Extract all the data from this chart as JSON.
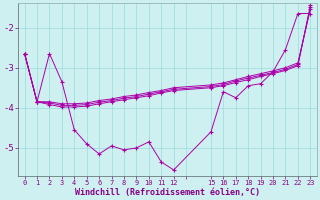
{
  "xlabel": "Windchill (Refroidissement éolien,°C)",
  "background_color": "#cff0f0",
  "grid_color": "#99dddd",
  "line_color": "#aa00aa",
  "xtick_labels": [
    "0",
    "1",
    "2",
    "3",
    "4",
    "5",
    "6",
    "7",
    "8",
    "9",
    "10",
    "11",
    "12",
    "",
    "15",
    "16",
    "17",
    "18",
    "19",
    "20",
    "21",
    "22",
    "23"
  ],
  "xtick_positions": [
    0,
    1,
    2,
    3,
    4,
    5,
    6,
    7,
    8,
    9,
    10,
    11,
    12,
    13,
    15,
    16,
    17,
    18,
    19,
    20,
    21,
    22,
    23
  ],
  "ylim": [
    -5.7,
    -1.4
  ],
  "xlim": [
    -0.5,
    23.5
  ],
  "yticks": [
    -5,
    -4,
    -3,
    -2
  ],
  "line1_x": [
    0,
    1,
    2,
    3,
    4,
    5,
    6,
    7,
    8,
    9,
    10,
    11,
    12,
    15,
    16,
    17,
    18,
    19,
    20,
    21,
    22,
    23
  ],
  "line1_y": [
    -2.65,
    -3.85,
    -2.65,
    -3.35,
    -4.55,
    -4.9,
    -5.15,
    -4.95,
    -5.05,
    -5.0,
    -4.85,
    -5.35,
    -5.55,
    -4.6,
    -3.6,
    -3.75,
    -3.45,
    -3.4,
    -3.1,
    -2.55,
    -1.65,
    -1.65
  ],
  "line2_x": [
    0,
    1,
    2,
    3,
    4,
    5,
    6,
    7,
    8,
    9,
    10,
    11,
    12,
    15,
    16,
    17,
    18,
    19,
    20,
    21,
    22,
    23
  ],
  "line2_y": [
    -2.65,
    -3.85,
    -3.85,
    -3.9,
    -3.9,
    -3.88,
    -3.82,
    -3.78,
    -3.72,
    -3.68,
    -3.62,
    -3.57,
    -3.5,
    -3.43,
    -3.38,
    -3.3,
    -3.22,
    -3.15,
    -3.08,
    -3.0,
    -2.88,
    -1.55
  ],
  "line3_x": [
    0,
    1,
    2,
    3,
    4,
    5,
    6,
    7,
    8,
    9,
    10,
    11,
    12,
    15,
    16,
    17,
    18,
    19,
    20,
    21,
    22,
    23
  ],
  "line3_y": [
    -2.65,
    -3.85,
    -3.88,
    -3.94,
    -3.94,
    -3.92,
    -3.86,
    -3.82,
    -3.76,
    -3.72,
    -3.66,
    -3.6,
    -3.54,
    -3.47,
    -3.42,
    -3.33,
    -3.26,
    -3.19,
    -3.12,
    -3.04,
    -2.92,
    -1.5
  ],
  "line4_x": [
    0,
    1,
    2,
    3,
    4,
    5,
    6,
    7,
    8,
    9,
    10,
    11,
    12,
    15,
    16,
    17,
    18,
    19,
    20,
    21,
    22,
    23
  ],
  "line4_y": [
    -2.65,
    -3.85,
    -3.92,
    -3.98,
    -3.98,
    -3.96,
    -3.9,
    -3.85,
    -3.8,
    -3.75,
    -3.7,
    -3.63,
    -3.57,
    -3.5,
    -3.45,
    -3.37,
    -3.3,
    -3.22,
    -3.15,
    -3.07,
    -2.95,
    -1.45
  ]
}
